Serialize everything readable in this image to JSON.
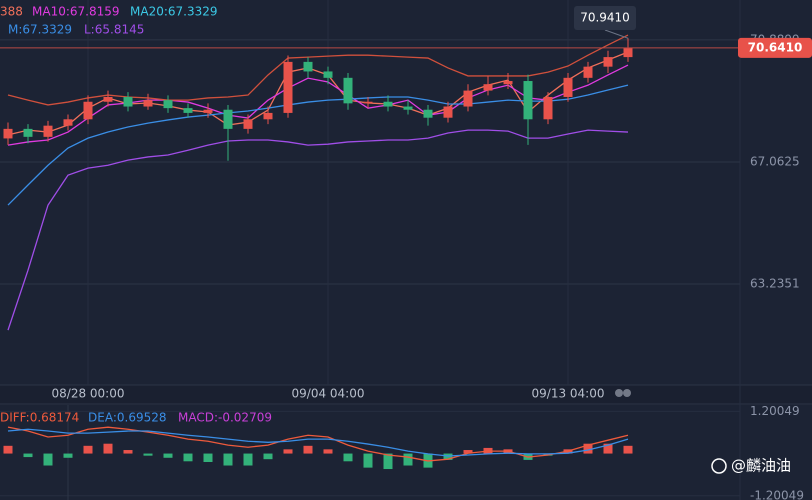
{
  "chart_data": [
    {
      "type": "candlestick",
      "categories": [
        null,
        null,
        null,
        null,
        "08/28 00:00",
        null,
        null,
        null,
        null,
        null,
        null,
        null,
        null,
        null,
        null,
        null,
        "09/04 04:00",
        null,
        null,
        null,
        null,
        null,
        null,
        null,
        null,
        null,
        null,
        null,
        "09/13 04:00",
        null,
        null,
        null
      ],
      "open": [
        67.8,
        68.1,
        67.85,
        68.2,
        68.4,
        68.95,
        69.1,
        68.8,
        69.0,
        68.75,
        68.6,
        68.7,
        68.1,
        68.4,
        68.6,
        70.2,
        69.9,
        69.7,
        68.9,
        68.95,
        68.8,
        68.7,
        68.45,
        68.8,
        69.3,
        69.5,
        69.6,
        68.4,
        69.1,
        69.7,
        70.05,
        70.35
      ],
      "high": [
        68.3,
        68.25,
        68.35,
        68.55,
        69.15,
        69.3,
        69.25,
        69.2,
        69.15,
        68.9,
        68.9,
        68.85,
        68.55,
        68.8,
        70.4,
        70.35,
        70.05,
        69.85,
        69.1,
        69.15,
        69.0,
        68.85,
        68.95,
        69.5,
        69.75,
        69.85,
        69.8,
        69.25,
        69.85,
        70.2,
        70.55,
        70.94
      ],
      "low": [
        67.6,
        67.65,
        67.7,
        68.05,
        68.25,
        68.8,
        68.65,
        68.7,
        68.6,
        68.45,
        68.45,
        67.1,
        67.95,
        68.25,
        68.45,
        69.7,
        69.5,
        68.7,
        68.75,
        68.65,
        68.55,
        68.2,
        68.3,
        68.65,
        69.15,
        69.35,
        67.6,
        68.25,
        68.95,
        69.55,
        69.85,
        70.2
      ],
      "close": [
        68.1,
        67.85,
        68.2,
        68.4,
        68.95,
        69.1,
        68.8,
        69.0,
        68.75,
        68.6,
        68.7,
        68.1,
        68.4,
        68.6,
        70.2,
        69.9,
        69.7,
        68.9,
        68.95,
        68.8,
        68.7,
        68.45,
        68.8,
        69.3,
        69.5,
        69.6,
        68.4,
        69.1,
        69.7,
        70.05,
        70.35,
        70.64
      ],
      "up_color": "#e9534b",
      "down_color": "#33b27a",
      "series": [
        {
          "name": "388",
          "color": "#f0705a",
          "values": [
            67.91,
            68.06,
            68.0,
            68.22,
            68.75,
            69.07,
            68.88,
            68.91,
            68.82,
            68.69,
            68.63,
            68.22,
            68.31,
            68.69,
            69.88,
            70.01,
            69.79,
            69.0,
            68.91,
            68.88,
            68.75,
            68.53,
            68.75,
            69.25,
            69.47,
            69.63,
            68.63,
            69.16,
            69.63,
            70.01,
            70.26,
            70.51
          ]
        },
        {
          "name": "MA10:67.8159",
          "color": "#e03be0",
          "values": [
            67.59,
            67.69,
            67.75,
            68.0,
            68.44,
            68.85,
            68.91,
            69.0,
            69.0,
            68.94,
            68.75,
            68.53,
            68.44,
            69.0,
            69.38,
            69.69,
            69.57,
            69.16,
            68.75,
            68.85,
            69.0,
            68.53,
            68.63,
            69.07,
            69.32,
            69.47,
            69.07,
            69.0,
            69.25,
            69.47,
            69.79,
            70.1
          ]
        },
        {
          "name": "M:67.3329",
          "color": "#3a8ee6",
          "values": [
            65.71,
            66.34,
            66.96,
            67.5,
            67.81,
            68.0,
            68.16,
            68.28,
            68.38,
            68.47,
            68.53,
            68.6,
            68.66,
            68.75,
            68.85,
            68.94,
            69.0,
            69.03,
            69.07,
            69.1,
            69.1,
            69.0,
            68.88,
            68.88,
            68.94,
            69.0,
            68.97,
            68.97,
            69.03,
            69.16,
            69.32,
            69.47
          ]
        },
        {
          "name": "L:65.8145",
          "color": "#a04ee8",
          "values": [
            61.79,
            63.67,
            65.71,
            66.65,
            66.87,
            66.96,
            67.12,
            67.22,
            67.28,
            67.43,
            67.59,
            67.72,
            67.75,
            67.75,
            67.69,
            67.59,
            67.62,
            67.69,
            67.72,
            67.75,
            67.75,
            67.81,
            67.97,
            68.06,
            68.06,
            68.03,
            67.81,
            67.81,
            67.94,
            68.06,
            68.03,
            68.0
          ]
        },
        {
          "color": "#d0503c",
          "values": [
            69.16,
            69.0,
            68.85,
            68.94,
            69.07,
            69.16,
            69.1,
            69.07,
            69.0,
            69.0,
            69.07,
            69.1,
            69.16,
            69.79,
            70.32,
            70.35,
            70.38,
            70.41,
            70.41,
            70.38,
            70.35,
            70.32,
            70.01,
            69.76,
            69.76,
            69.76,
            69.76,
            69.88,
            70.07,
            70.41,
            70.73,
            71.04
          ]
        }
      ],
      "extra_labels": [
        {
          "text": "MA20:67.3329",
          "color": "#3cc9e6"
        }
      ],
      "current_price": {
        "value": 70.641,
        "label": "70.6410"
      },
      "high_marker": {
        "value": 70.941,
        "label": "70.9410"
      },
      "ylim": [
        60.07,
        72.14
      ],
      "yticks": [
        70.8899,
        67.0625,
        63.2351
      ],
      "grid": true
    },
    {
      "type": "macd",
      "series": [
        {
          "name": "DIFF:0.68174",
          "color": "#ee5a3c",
          "kind": "line",
          "values": [
            0.75,
            0.64,
            0.47,
            0.52,
            0.69,
            0.75,
            0.69,
            0.61,
            0.52,
            0.41,
            0.35,
            0.24,
            0.18,
            0.24,
            0.41,
            0.52,
            0.47,
            0.24,
            0.07,
            -0.04,
            -0.1,
            -0.21,
            -0.16,
            0.01,
            0.07,
            0.07,
            -0.1,
            -0.04,
            0.07,
            0.24,
            0.38,
            0.52
          ]
        },
        {
          "name": "DEA:0.69528",
          "color": "#3a8ee6",
          "kind": "line",
          "values": [
            0.64,
            0.69,
            0.64,
            0.58,
            0.58,
            0.61,
            0.64,
            0.64,
            0.58,
            0.52,
            0.47,
            0.41,
            0.35,
            0.32,
            0.35,
            0.41,
            0.41,
            0.35,
            0.27,
            0.18,
            0.07,
            -0.01,
            -0.07,
            -0.04,
            -0.01,
            0.01,
            -0.01,
            -0.01,
            0.01,
            0.1,
            0.24,
            0.41
          ]
        },
        {
          "name": "MACD:-0.02709",
          "color": "#c940d8",
          "kind": "bar",
          "values": [
            0.22,
            -0.1,
            -0.34,
            -0.12,
            0.22,
            0.28,
            0.1,
            -0.06,
            -0.12,
            -0.22,
            -0.24,
            -0.34,
            -0.34,
            -0.16,
            0.12,
            0.22,
            0.12,
            -0.22,
            -0.4,
            -0.44,
            -0.34,
            -0.4,
            -0.18,
            0.1,
            0.16,
            0.12,
            -0.18,
            -0.06,
            0.12,
            0.28,
            0.28,
            0.22
          ]
        }
      ],
      "up_color": "#e9534b",
      "down_color": "#33b27a",
      "ylim": [
        -1.32,
        1.38
      ],
      "yticks": [
        1.20049,
        -1.20049
      ]
    }
  ],
  "watermark": "@麟油油"
}
